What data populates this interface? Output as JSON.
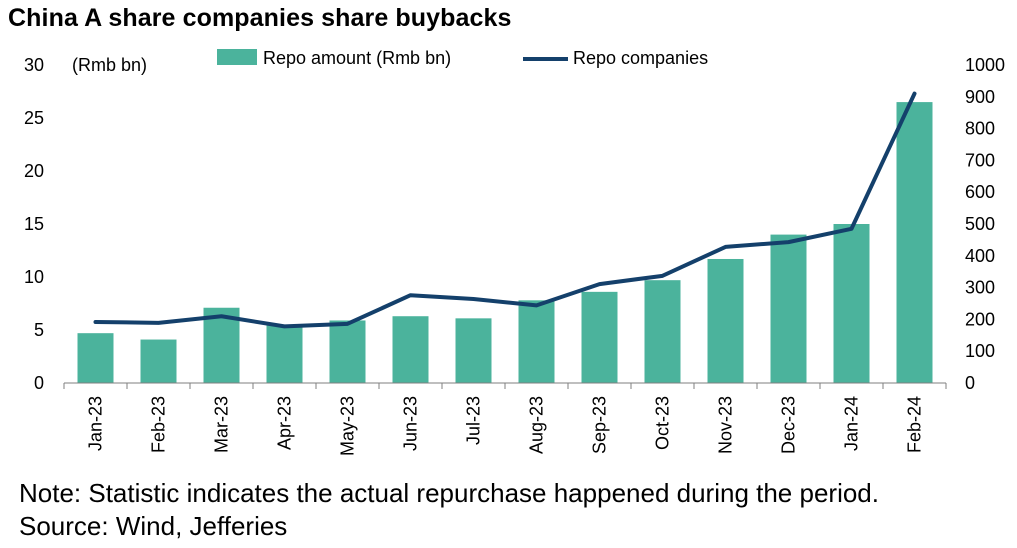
{
  "title": "China A share companies share buybacks",
  "note": "Note: Statistic indicates the actual repurchase happened during the period.",
  "source": "Source: Wind, Jefferies",
  "chart_data": {
    "type": "bar",
    "categories": [
      "Jan-23",
      "Feb-23",
      "Mar-23",
      "Apr-23",
      "May-23",
      "Jun-23",
      "Jul-23",
      "Aug-23",
      "Sep-23",
      "Oct-23",
      "Nov-23",
      "Dec-23",
      "Jan-24",
      "Feb-24"
    ],
    "series": [
      {
        "name": "Repo amount (Rmb bn)",
        "type": "bar",
        "axis": "left",
        "color": "#4BB39C",
        "values": [
          4.7,
          4.1,
          7.1,
          5.5,
          5.9,
          6.3,
          6.1,
          7.8,
          8.6,
          9.7,
          11.7,
          14.0,
          15.0,
          26.5
        ]
      },
      {
        "name": "Repo companies",
        "type": "line",
        "axis": "right",
        "color": "#14406B",
        "values": [
          192,
          189,
          210,
          178,
          186,
          276,
          264,
          244,
          311,
          337,
          428,
          443,
          485,
          910
        ]
      }
    ],
    "left_axis": {
      "unit_label": "(Rmb bn)",
      "ylim": [
        0,
        30
      ],
      "ticks": [
        0,
        5,
        10,
        15,
        20,
        25,
        30
      ]
    },
    "right_axis": {
      "ylim": [
        0,
        1000
      ],
      "ticks": [
        0,
        100,
        200,
        300,
        400,
        500,
        600,
        700,
        800,
        900,
        1000
      ]
    },
    "legend_placement": "top",
    "grid": false
  }
}
